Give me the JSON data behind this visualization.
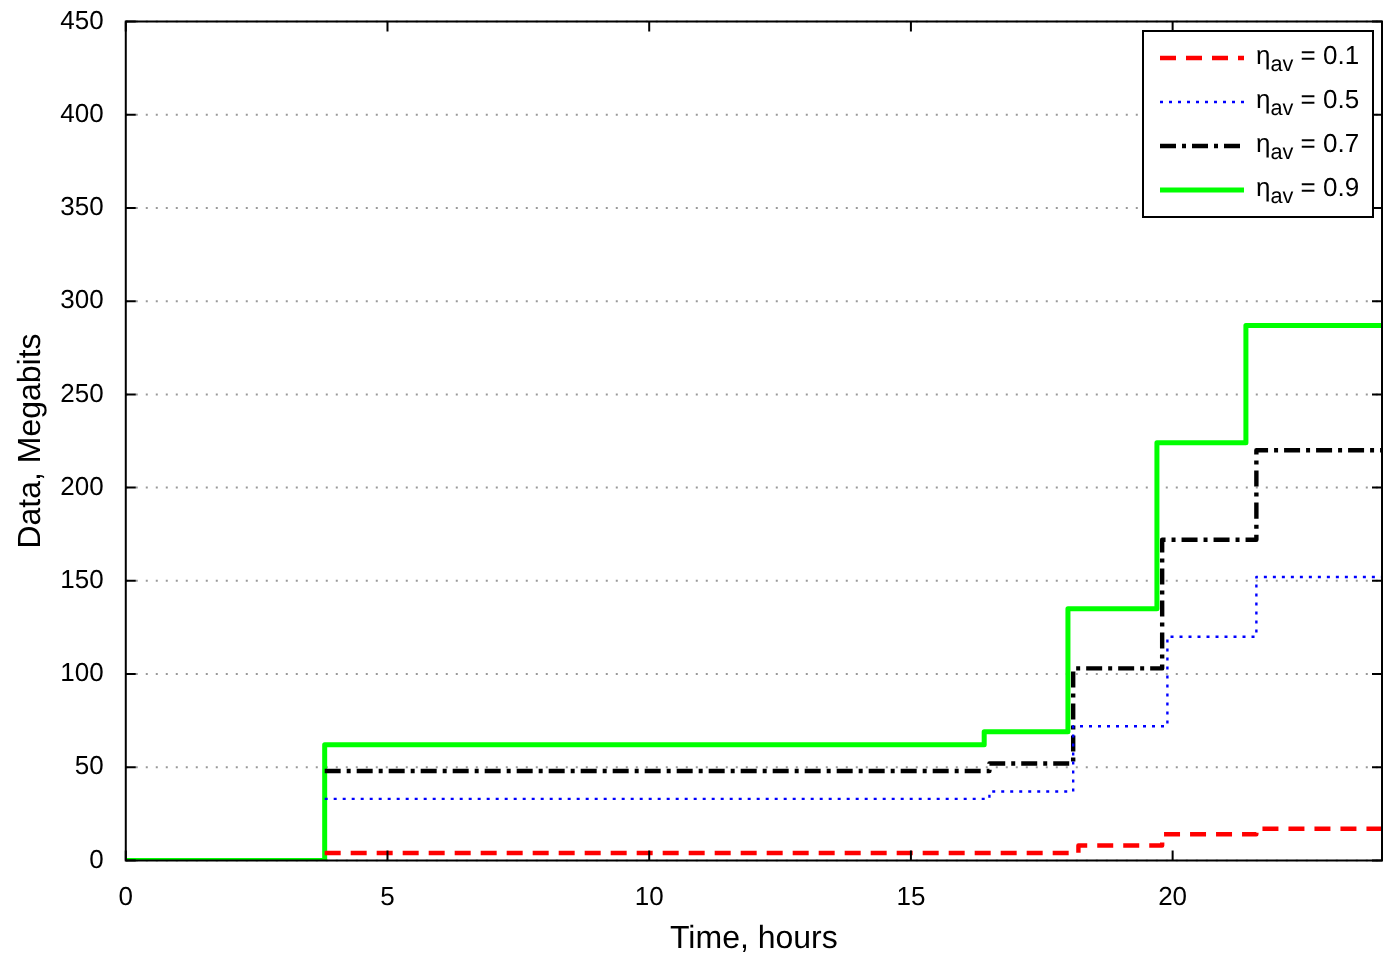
{
  "chart_data": {
    "type": "step",
    "xlabel": "Time, hours",
    "ylabel": "Data, Megabits",
    "xlim": [
      0,
      24
    ],
    "xticks": [
      0,
      5,
      10,
      15,
      20
    ],
    "ylim": [
      0,
      450
    ],
    "yticks": [
      0,
      50,
      100,
      150,
      200,
      250,
      300,
      350,
      400,
      450
    ],
    "grid": "y",
    "legend": "top right",
    "marker": "none",
    "series": [
      {
        "name": "η$_{av}$ = 0.1",
        "color": "#ff0000",
        "line_style": "dashed",
        "x": [
          3.8,
          18.2,
          19.8,
          21.6,
          24
        ],
        "values": [
          4,
          8,
          14,
          17,
          17
        ]
      },
      {
        "name": "η$_{av}$ = 0.5",
        "color": "#0000ff",
        "line_style": "dotted",
        "x": [
          3.8,
          16.5,
          18.1,
          19.9,
          21.6,
          24
        ],
        "values": [
          33,
          37,
          72,
          120,
          152,
          152
        ]
      },
      {
        "name": "η$_{av}$ = 0.7",
        "color": "#000000",
        "line_style": "dashdot",
        "x": [
          3.8,
          16.5,
          18.1,
          19.8,
          21.6,
          24
        ],
        "values": [
          48,
          52,
          103,
          172,
          220,
          220
        ]
      },
      {
        "name": "η$_{av}$ = 0.9",
        "color": "#00ff00",
        "line_style": "solid",
        "x": [
          0,
          3.8,
          16.4,
          18.0,
          19.7,
          21.4,
          24
        ],
        "values": [
          0,
          62,
          69,
          135,
          224,
          287,
          287
        ]
      }
    ]
  }
}
